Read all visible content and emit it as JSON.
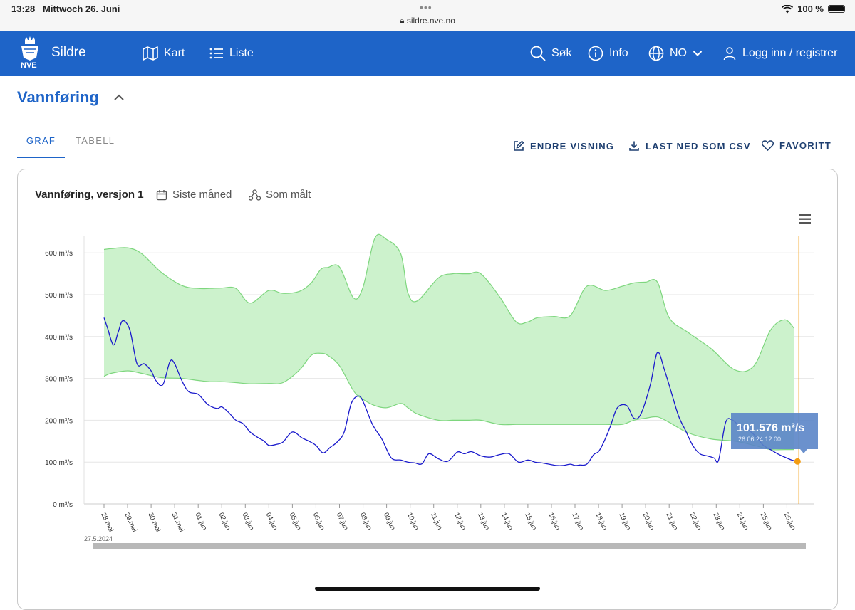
{
  "statusbar": {
    "time": "13:28",
    "date": "Mittwoch 26. Juni",
    "url": "sildre.nve.no",
    "battery": "100 %"
  },
  "nav": {
    "logo_text": "NVE",
    "brand": "Sildre",
    "kart": "Kart",
    "liste": "Liste",
    "sok": "Søk",
    "info": "Info",
    "lang": "NO",
    "login": "Logg inn / registrer"
  },
  "section": {
    "title": "Vannføring"
  },
  "tabs": {
    "graf": "GRAF",
    "tabell": "TABELL"
  },
  "actions": {
    "endre": "ENDRE VISNING",
    "last_ned": "LAST NED SOM CSV",
    "favoritt": "FAVORITT"
  },
  "chart_header": {
    "series_title": "Vannføring, versjon 1",
    "period": "Siste måned",
    "mode": "Som målt"
  },
  "tooltip": {
    "value": "101.576 m³/s",
    "time": "26.06.24 12:00"
  },
  "colors": {
    "brand_blue": "#1e64c8",
    "band_fill": "#ccf2cc",
    "band_stroke": "#7ed67e",
    "series": "#1a1acc",
    "marker": "#f39c12"
  },
  "chart_data": {
    "type": "area",
    "yunit": "m³/s",
    "ylim": [
      0,
      630
    ],
    "yticks": [
      "0 m³/s",
      "100 m³/s",
      "200 m³/s",
      "300 m³/s",
      "400 m³/s",
      "500 m³/s",
      "600 m³/s"
    ],
    "xticks": [
      "28.mai",
      "29.mai",
      "30.mai",
      "31.mai",
      "01.jun",
      "02.jun",
      "03.jun",
      "04.jun",
      "05.jun",
      "06.jun",
      "07.jun",
      "08.jun",
      "09.jun",
      "10.jun",
      "11.jun",
      "12.jun",
      "13.jun",
      "14.jun",
      "15.jun",
      "16.jun",
      "17.jun",
      "18.jun",
      "19.jun",
      "20.jun",
      "21.jun",
      "22.jun",
      "23.jun",
      "24.jun",
      "25.jun",
      "26.jun"
    ],
    "range_start_label": "27.5.2024",
    "band": {
      "days": [
        0,
        0.3,
        1.0,
        1.6,
        2.4,
        3.3,
        4.0,
        4.5,
        5.0,
        5.6,
        6.2,
        7.0,
        7.6,
        8.3,
        8.8,
        9.2,
        9.5,
        10.0,
        10.6,
        11.0,
        11.5,
        12.0,
        12.6,
        12.9,
        13.3,
        14.2,
        14.8,
        15.2,
        15.5,
        16.0,
        16.8,
        17.5,
        18.0,
        18.4,
        19.1,
        19.8,
        20.5,
        21.3,
        22.0,
        22.5,
        23.0,
        23.5,
        24.0,
        24.8,
        25.8,
        26.8,
        27.6,
        28.3,
        28.9,
        29.3
      ],
      "upper": [
        608,
        610,
        612,
        598,
        555,
        522,
        515,
        515,
        516,
        515,
        480,
        510,
        503,
        508,
        528,
        560,
        565,
        566,
        492,
        518,
        635,
        632,
        598,
        505,
        485,
        540,
        550,
        550,
        550,
        550,
        495,
        435,
        435,
        445,
        448,
        450,
        520,
        510,
        520,
        528,
        530,
        530,
        445,
        410,
        370,
        320,
        330,
        415,
        440,
        420
      ],
      "lower": [
        305,
        312,
        318,
        312,
        302,
        300,
        295,
        292,
        292,
        290,
        287,
        288,
        290,
        320,
        355,
        360,
        355,
        330,
        270,
        250,
        235,
        230,
        240,
        230,
        215,
        200,
        200,
        200,
        200,
        200,
        190,
        190,
        190,
        190,
        190,
        190,
        190,
        190,
        190,
        200,
        205,
        208,
        195,
        170,
        155,
        150,
        140,
        130,
        130,
        130
      ]
    },
    "series": {
      "name": "Vannføring",
      "days": [
        0,
        0.15,
        0.4,
        0.6,
        0.8,
        1.1,
        1.4,
        1.7,
        2.0,
        2.2,
        2.5,
        2.8,
        3.0,
        3.3,
        3.6,
        4.0,
        4.4,
        4.8,
        5.0,
        5.3,
        5.6,
        5.9,
        6.2,
        6.5,
        6.8,
        7.0,
        7.3,
        7.6,
        8.0,
        8.4,
        8.7,
        9.0,
        9.3,
        9.6,
        9.9,
        10.2,
        10.5,
        10.8,
        11.0,
        11.4,
        11.8,
        12.2,
        12.6,
        12.9,
        13.2,
        13.5,
        13.8,
        14.2,
        14.6,
        15.0,
        15.3,
        15.6,
        16.0,
        16.4,
        16.8,
        17.2,
        17.6,
        18.0,
        18.3,
        18.6,
        18.9,
        19.2,
        19.5,
        19.8,
        20.0,
        20.2,
        20.5,
        20.8,
        21.0,
        21.2,
        21.5,
        21.8,
        22.2,
        22.5,
        22.8,
        23.2,
        23.5,
        23.8,
        24.1,
        24.4,
        24.7,
        25.0,
        25.3,
        25.6,
        25.9,
        26.1,
        26.4,
        26.7,
        27.0,
        27.4,
        27.7,
        28.0,
        28.3,
        28.6,
        28.9,
        29.2,
        29.45
      ],
      "values": [
        445,
        420,
        380,
        410,
        438,
        415,
        335,
        335,
        318,
        295,
        285,
        340,
        335,
        295,
        268,
        262,
        238,
        228,
        232,
        218,
        200,
        192,
        172,
        160,
        150,
        140,
        142,
        148,
        172,
        158,
        150,
        140,
        122,
        135,
        148,
        172,
        240,
        258,
        245,
        190,
        155,
        110,
        105,
        100,
        98,
        96,
        120,
        108,
        102,
        124,
        120,
        125,
        115,
        112,
        118,
        120,
        100,
        105,
        100,
        98,
        95,
        92,
        92,
        95,
        92,
        93,
        95,
        118,
        125,
        145,
        185,
        230,
        235,
        205,
        215,
        285,
        362,
        320,
        265,
        210,
        175,
        140,
        120,
        115,
        110,
        105,
        195,
        200,
        185,
        175,
        160,
        140,
        130,
        120,
        112,
        105,
        101.576
      ]
    },
    "grid": true,
    "legend": "none"
  }
}
